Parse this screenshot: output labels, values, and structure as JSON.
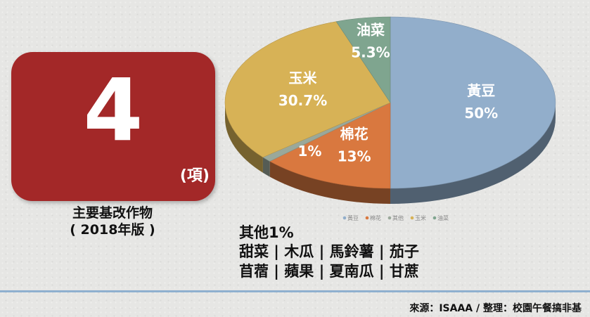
{
  "count_panel": {
    "number": "4",
    "unit": "(項)",
    "caption_line1": "主要基改作物",
    "caption_line2": "( 2018年版 )"
  },
  "other_crops": {
    "heading": "其他1%",
    "line1": "甜菜 | 木瓜 | 馬鈴薯 | 茄子",
    "line2": "苜蓿 | 蘋果 | 夏南瓜 | 甘蔗"
  },
  "source": "來源：ISAAA / 整理：校園午餐搞非基",
  "chart_data": {
    "type": "pie",
    "style": "3d",
    "legend_position": "bottom",
    "slices": [
      {
        "label": "黃豆",
        "value": 50,
        "value_label": "50%",
        "color": "#92aecb"
      },
      {
        "label": "棉花",
        "value": 13,
        "value_label": "13%",
        "color": "#d9783f"
      },
      {
        "label": "其他",
        "value": 1,
        "value_label": "1%",
        "color": "#9aa89a"
      },
      {
        "label": "玉米",
        "value": 30.7,
        "value_label": "30.7%",
        "color": "#d7b256"
      },
      {
        "label": "油菜",
        "value": 5.3,
        "value_label": "5.3%",
        "color": "#7fa58f"
      }
    ]
  }
}
